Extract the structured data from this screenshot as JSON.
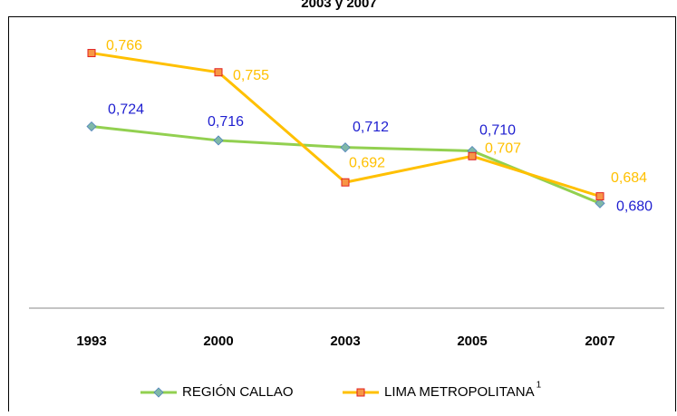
{
  "chart_data": {
    "type": "line",
    "title": "2003 y 2007",
    "categories": [
      "1993",
      "2000",
      "2003",
      "2005",
      "2007"
    ],
    "ylim": [
      0.62,
      0.786
    ],
    "legend": "bottom",
    "series": [
      {
        "name": "REGIÓN CALLAO",
        "color": "#92d050",
        "marker_color": "#7fb8a8",
        "label_color": "#1f1fd0",
        "values": [
          0.724,
          0.716,
          0.712,
          0.71,
          0.68
        ],
        "value_labels": [
          "0,724",
          "0,716",
          "0,712",
          "0,710",
          "0,680"
        ]
      },
      {
        "name": "LIMA METROPOLITANA",
        "name_note": "1",
        "color": "#ffc000",
        "marker_color": "#f79646",
        "label_color": "#ffc000",
        "values": [
          0.766,
          0.755,
          0.692,
          0.707,
          0.684
        ],
        "value_labels": [
          "0,766",
          "0,755",
          "0,692",
          "0,707",
          "0,684"
        ]
      }
    ]
  }
}
